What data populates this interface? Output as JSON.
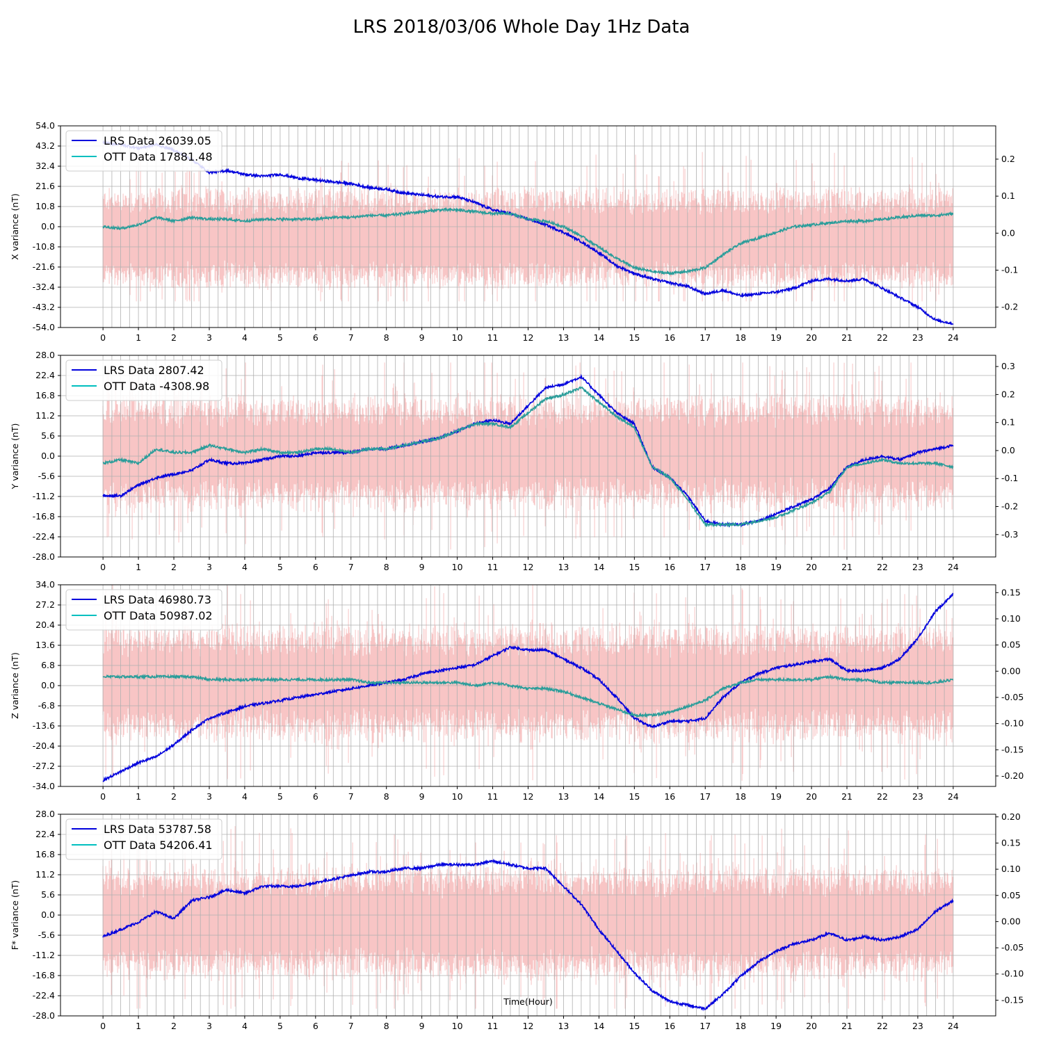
{
  "title": "LRS 2018/03/06 Whole Day 1Hz Data",
  "colors": {
    "lrs": "#0000dd",
    "ott": "#2a9d9a",
    "ott_legend": "#00bfbf",
    "noise": "#f4a6a6",
    "grid": "#b0b0b0"
  },
  "chart_data": [
    {
      "type": "line",
      "ylabel": "X variance (nT)",
      "xlabel": "",
      "xlim": [
        -1.2,
        25.2
      ],
      "ylim": [
        -54,
        54
      ],
      "yticks": [
        -54.0,
        -43.2,
        -32.4,
        -21.6,
        -10.8,
        0.0,
        10.8,
        21.6,
        32.4,
        43.2,
        54.0
      ],
      "xticks": [
        0,
        1,
        2,
        3,
        4,
        5,
        6,
        7,
        8,
        9,
        10,
        11,
        12,
        13,
        14,
        15,
        16,
        17,
        18,
        19,
        20,
        21,
        22,
        23,
        24
      ],
      "y2lim": [
        -0.255,
        0.29
      ],
      "y2ticks": [
        -0.2,
        -0.1,
        0.0,
        0.1,
        0.2
      ],
      "noise": {
        "center": -6,
        "amp": 20,
        "max": 40
      },
      "series": [
        {
          "name": "LRS Data 26039.05",
          "x": [
            0,
            0.5,
            1,
            1.5,
            2,
            2.5,
            3,
            3.5,
            4,
            4.5,
            5,
            5.5,
            6,
            6.5,
            7,
            7.5,
            8,
            8.5,
            9,
            9.5,
            10,
            10.5,
            11,
            11.5,
            12,
            12.5,
            13,
            13.5,
            14,
            14.5,
            15,
            15.5,
            16,
            16.5,
            17,
            17.5,
            18,
            18.5,
            19,
            19.5,
            20,
            20.5,
            21,
            21.5,
            22,
            22.5,
            23,
            23.5,
            24
          ],
          "y": [
            45,
            44,
            42,
            44,
            41,
            36,
            29,
            30,
            28,
            27,
            28,
            26,
            25,
            24,
            23,
            21,
            20,
            18,
            17,
            16,
            16,
            13,
            9,
            7,
            4,
            1,
            -3,
            -8,
            -14,
            -21,
            -25,
            -28,
            -30,
            -32,
            -36,
            -34,
            -37,
            -36,
            -35,
            -33,
            -29,
            -28,
            -29,
            -28,
            -33,
            -38,
            -43,
            -50,
            -52
          ]
        },
        {
          "name": "OTT Data 17881.48",
          "x": [
            0,
            0.5,
            1,
            1.5,
            2,
            2.5,
            3,
            3.5,
            4,
            4.5,
            5,
            5.5,
            6,
            6.5,
            7,
            7.5,
            8,
            8.5,
            9,
            9.5,
            10,
            10.5,
            11,
            11.5,
            12,
            12.5,
            13,
            13.5,
            14,
            14.5,
            15,
            15.5,
            16,
            16.5,
            17,
            17.5,
            18,
            18.5,
            19,
            19.5,
            20,
            20.5,
            21,
            21.5,
            22,
            22.5,
            23,
            23.5,
            24
          ],
          "y": [
            0,
            -1,
            1,
            5,
            3,
            5,
            4,
            4,
            3,
            4,
            4,
            4,
            4,
            5,
            5,
            6,
            6,
            7,
            8,
            9,
            9,
            8,
            7,
            7,
            4,
            3,
            0,
            -5,
            -11,
            -17,
            -22,
            -24,
            -25,
            -24,
            -22,
            -15,
            -9,
            -6,
            -3,
            0,
            1,
            2,
            3,
            3,
            4,
            5,
            6,
            6,
            7
          ]
        }
      ]
    },
    {
      "type": "line",
      "ylabel": "Y variance (nT)",
      "xlabel": "",
      "xlim": [
        -1.2,
        25.2
      ],
      "ylim": [
        -28,
        28
      ],
      "yticks": [
        -28.0,
        -22.4,
        -16.8,
        -11.2,
        -5.6,
        0.0,
        5.6,
        11.2,
        16.8,
        22.4,
        28.0
      ],
      "xticks": [
        0,
        1,
        2,
        3,
        4,
        5,
        6,
        7,
        8,
        9,
        10,
        11,
        12,
        13,
        14,
        15,
        16,
        17,
        18,
        19,
        20,
        21,
        22,
        23,
        24
      ],
      "y2lim": [
        -0.38,
        0.34
      ],
      "y2ticks": [
        -0.3,
        -0.2,
        -0.1,
        0.0,
        0.1,
        0.2,
        0.3
      ],
      "noise": {
        "center": 1,
        "amp": 11,
        "max": 26
      },
      "series": [
        {
          "name": "LRS Data 2807.42",
          "x": [
            0,
            0.5,
            1,
            1.5,
            2,
            2.5,
            3,
            3.5,
            4,
            4.5,
            5,
            5.5,
            6,
            6.5,
            7,
            7.5,
            8,
            8.5,
            9,
            9.5,
            10,
            10.5,
            11,
            11.5,
            12,
            12.5,
            13,
            13.5,
            14,
            14.5,
            15,
            15.5,
            16,
            16.5,
            17,
            17.5,
            18,
            18.5,
            19,
            19.5,
            20,
            20.5,
            21,
            21.5,
            22,
            22.5,
            23,
            23.5,
            24
          ],
          "y": [
            -11,
            -11,
            -8,
            -6,
            -5,
            -4,
            -1,
            -2,
            -2,
            -1,
            0,
            0,
            1,
            1,
            1,
            2,
            2,
            3,
            4,
            5,
            7,
            9,
            10,
            9,
            14,
            19,
            20,
            22,
            17,
            12,
            9,
            -3,
            -6,
            -11,
            -18,
            -19,
            -19,
            -18,
            -16,
            -14,
            -12,
            -9,
            -3,
            -1,
            0,
            -1,
            1,
            2,
            3
          ]
        },
        {
          "name": "OTT Data -4308.98",
          "x": [
            0,
            0.5,
            1,
            1.5,
            2,
            2.5,
            3,
            3.5,
            4,
            4.5,
            5,
            5.5,
            6,
            6.5,
            7,
            7.5,
            8,
            8.5,
            9,
            9.5,
            10,
            10.5,
            11,
            11.5,
            12,
            12.5,
            13,
            13.5,
            14,
            14.5,
            15,
            15.5,
            16,
            16.5,
            17,
            17.5,
            18,
            18.5,
            19,
            19.5,
            20,
            20.5,
            21,
            21.5,
            22,
            22.5,
            23,
            23.5,
            24
          ],
          "y": [
            -2,
            -1,
            -2,
            2,
            1,
            1,
            3,
            2,
            1,
            2,
            1,
            1,
            2,
            2,
            1,
            2,
            2,
            3,
            4,
            5,
            7,
            9,
            9,
            8,
            12,
            16,
            17,
            19,
            15,
            11,
            8,
            -3,
            -6,
            -12,
            -19,
            -19,
            -19,
            -18,
            -17,
            -15,
            -13,
            -10,
            -3,
            -2,
            -1,
            -2,
            -2,
            -2,
            -3
          ]
        }
      ]
    },
    {
      "type": "line",
      "ylabel": "Z variance (nT)",
      "xlabel": "",
      "xlim": [
        -1.2,
        25.2
      ],
      "ylim": [
        -34,
        34
      ],
      "yticks": [
        -34.0,
        -27.2,
        -20.4,
        -13.6,
        -6.8,
        0.0,
        6.8,
        13.6,
        20.4,
        27.2,
        34.0
      ],
      "xticks": [
        0,
        1,
        2,
        3,
        4,
        5,
        6,
        7,
        8,
        9,
        10,
        11,
        12,
        13,
        14,
        15,
        16,
        17,
        18,
        19,
        20,
        21,
        22,
        23,
        24
      ],
      "y2lim": [
        -0.22,
        0.165
      ],
      "y2ticks": [
        -0.2,
        -0.15,
        -0.1,
        -0.05,
        0.0,
        0.05,
        0.1,
        0.15
      ],
      "noise": {
        "center": 1,
        "amp": 14,
        "max": 34
      },
      "series": [
        {
          "name": "LRS Data 46980.73",
          "x": [
            0,
            0.5,
            1,
            1.5,
            2,
            2.5,
            3,
            3.5,
            4,
            4.5,
            5,
            5.5,
            6,
            6.5,
            7,
            7.5,
            8,
            8.5,
            9,
            9.5,
            10,
            10.5,
            11,
            11.5,
            12,
            12.5,
            13,
            13.5,
            14,
            14.5,
            15,
            15.5,
            16,
            16.5,
            17,
            17.5,
            18,
            18.5,
            19,
            19.5,
            20,
            20.5,
            21,
            21.5,
            22,
            22.5,
            23,
            23.5,
            24
          ],
          "y": [
            -32,
            -29,
            -26,
            -24,
            -20,
            -15,
            -11,
            -9,
            -7,
            -6,
            -5,
            -4,
            -3,
            -2,
            -1,
            0,
            1,
            2,
            4,
            5,
            6,
            7,
            10,
            13,
            12,
            12,
            9,
            6,
            2,
            -4,
            -11,
            -14,
            -12,
            -12,
            -11,
            -4,
            1,
            4,
            6,
            7,
            8,
            9,
            5,
            5,
            6,
            9,
            16,
            25,
            31
          ]
        },
        {
          "name": "OTT Data 50987.02",
          "x": [
            0,
            0.5,
            1,
            1.5,
            2,
            2.5,
            3,
            3.5,
            4,
            4.5,
            5,
            5.5,
            6,
            6.5,
            7,
            7.5,
            8,
            8.5,
            9,
            9.5,
            10,
            10.5,
            11,
            11.5,
            12,
            12.5,
            13,
            13.5,
            14,
            14.5,
            15,
            15.5,
            16,
            16.5,
            17,
            17.5,
            18,
            18.5,
            19,
            19.5,
            20,
            20.5,
            21,
            21.5,
            22,
            22.5,
            23,
            23.5,
            24
          ],
          "y": [
            3,
            3,
            3,
            3,
            3,
            3,
            2,
            2,
            2,
            2,
            2,
            2,
            2,
            2,
            2,
            1,
            1,
            1,
            1,
            1,
            1,
            0,
            1,
            0,
            -1,
            -1,
            -2,
            -4,
            -6,
            -8,
            -10,
            -10,
            -9,
            -7,
            -5,
            -1,
            1,
            2,
            2,
            2,
            2,
            3,
            2,
            2,
            1,
            1,
            1,
            1,
            2
          ]
        }
      ]
    },
    {
      "type": "line",
      "ylabel": "F* variance (nT)",
      "xlabel": "Time(Hour)",
      "xlim": [
        -1.2,
        25.2
      ],
      "ylim": [
        -28,
        28
      ],
      "yticks": [
        -28.0,
        -22.4,
        -16.8,
        -11.2,
        -5.6,
        0.0,
        5.6,
        11.2,
        16.8,
        22.4,
        28.0
      ],
      "xticks": [
        0,
        1,
        2,
        3,
        4,
        5,
        6,
        7,
        8,
        9,
        10,
        11,
        12,
        13,
        14,
        15,
        16,
        17,
        18,
        19,
        20,
        21,
        22,
        23,
        24
      ],
      "y2lim": [
        -0.18,
        0.205
      ],
      "y2ticks": [
        -0.15,
        -0.1,
        -0.05,
        0.0,
        0.05,
        0.1,
        0.15,
        0.2
      ],
      "noise": {
        "center": -2,
        "amp": 11,
        "max": 26
      },
      "series": [
        {
          "name": "LRS Data 53787.58",
          "x": [
            0,
            0.5,
            1,
            1.5,
            2,
            2.5,
            3,
            3.5,
            4,
            4.5,
            5,
            5.5,
            6,
            6.5,
            7,
            7.5,
            8,
            8.5,
            9,
            9.5,
            10,
            10.5,
            11,
            11.5,
            12,
            12.5,
            13,
            13.5,
            14,
            14.5,
            15,
            15.5,
            16,
            16.5,
            17,
            17.5,
            18,
            18.5,
            19,
            19.5,
            20,
            20.5,
            21,
            21.5,
            22,
            22.5,
            23,
            23.5,
            24
          ],
          "y": [
            -6,
            -4,
            -2,
            1,
            -1,
            4,
            5,
            7,
            6,
            8,
            8,
            8,
            9,
            10,
            11,
            12,
            12,
            13,
            13,
            14,
            14,
            14,
            15,
            14,
            13,
            13,
            8,
            3,
            -4,
            -10,
            -16,
            -21,
            -24,
            -25,
            -26,
            -22,
            -17,
            -13,
            -10,
            -8,
            -7,
            -5,
            -7,
            -6,
            -7,
            -6,
            -4,
            1,
            4
          ]
        },
        {
          "name": "OTT Data 54206.41",
          "x": [],
          "y": []
        }
      ]
    }
  ]
}
